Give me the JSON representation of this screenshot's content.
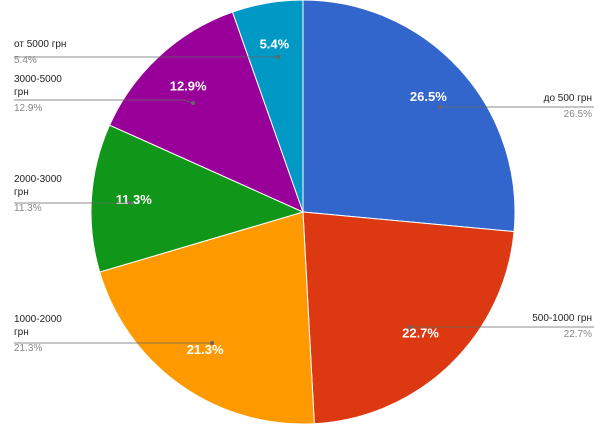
{
  "chart_data": {
    "type": "pie",
    "categories": [
      "до 500 грн",
      "500-1000 грн",
      "1000-2000 грн",
      "2000-3000 грн",
      "3000-5000 грн",
      "от 5000 грн"
    ],
    "values": [
      26.5,
      22.7,
      21.3,
      11.3,
      12.9,
      5.4
    ],
    "value_labels": [
      "26.5%",
      "22.7%",
      "21.3%",
      "11.3%",
      "12.9%",
      "5.4%"
    ],
    "colors": [
      "#3366cc",
      "#dc3912",
      "#ff9900",
      "#109618",
      "#990099",
      "#0099c6"
    ]
  }
}
